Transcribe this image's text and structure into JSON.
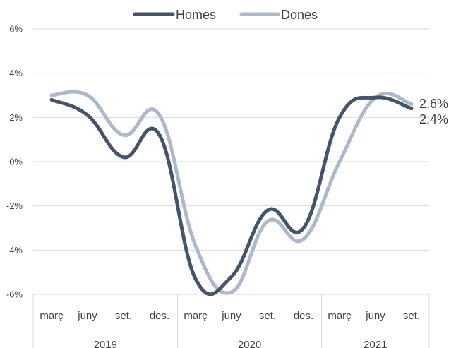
{
  "chart_data": {
    "type": "line",
    "ylim": [
      -6,
      6
    ],
    "yticks": [
      "6%",
      "4%",
      "2%",
      "0%",
      "-2%",
      "-4%",
      "-6%"
    ],
    "categories": [
      "març",
      "juny",
      "set.",
      "des.",
      "març",
      "juny",
      "set.",
      "des.",
      "març",
      "juny",
      "set."
    ],
    "years": [
      {
        "label": "2019",
        "count": 4
      },
      {
        "label": "2020",
        "count": 4
      },
      {
        "label": "2021",
        "count": 3
      }
    ],
    "grid": true,
    "legend_position": "top-center",
    "series": [
      {
        "name": "Homes",
        "color": "#44546a",
        "values": [
          2.8,
          2.1,
          0.2,
          1.2,
          -5.3,
          -5.2,
          -2.2,
          -3.0,
          2.0,
          2.9,
          2.4
        ],
        "end_label": "2,4%"
      },
      {
        "name": "Dones",
        "color": "#adb9ca",
        "values": [
          3.0,
          3.0,
          1.2,
          2.1,
          -3.8,
          -5.9,
          -2.7,
          -3.5,
          0.0,
          2.9,
          2.6
        ],
        "end_label": "2,6%"
      }
    ]
  }
}
